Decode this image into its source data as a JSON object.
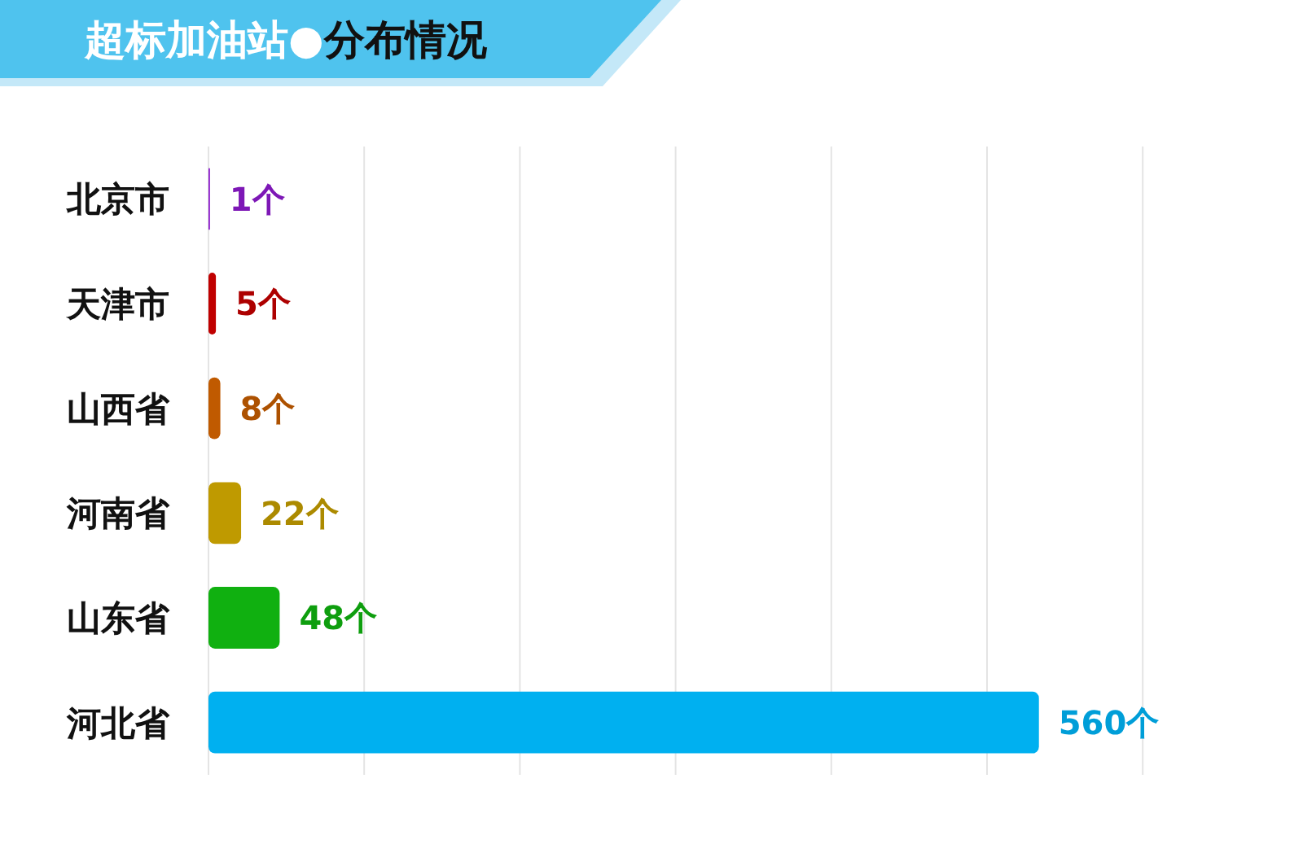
{
  "chart_data": {
    "type": "bar",
    "orientation": "horizontal",
    "title": "超标加油站●分布情况",
    "categories": [
      "北京市",
      "天津市",
      "山西省",
      "河南省",
      "山东省",
      "河北省"
    ],
    "values": [
      1,
      5,
      8,
      22,
      48,
      560
    ],
    "colors": [
      "#8b1acb",
      "#c00000",
      "#c05a00",
      "#bf9a00",
      "#10b010",
      "#00b0f0"
    ],
    "value_labels": [
      "1个",
      "5个",
      "8个",
      "22个",
      "48个",
      "560个"
    ],
    "xlim": [
      0,
      630
    ],
    "xticks": [
      {
        "value": 0,
        "label": null
      },
      {
        "value": 105,
        "label": null
      },
      {
        "value": 210,
        "label": null
      },
      {
        "value": 315,
        "label": null
      },
      {
        "value": 420,
        "label": null
      },
      {
        "value": 525,
        "label": null
      },
      {
        "value": 630,
        "label": null
      }
    ],
    "grid": "x",
    "tick_labels": "y"
  }
}
